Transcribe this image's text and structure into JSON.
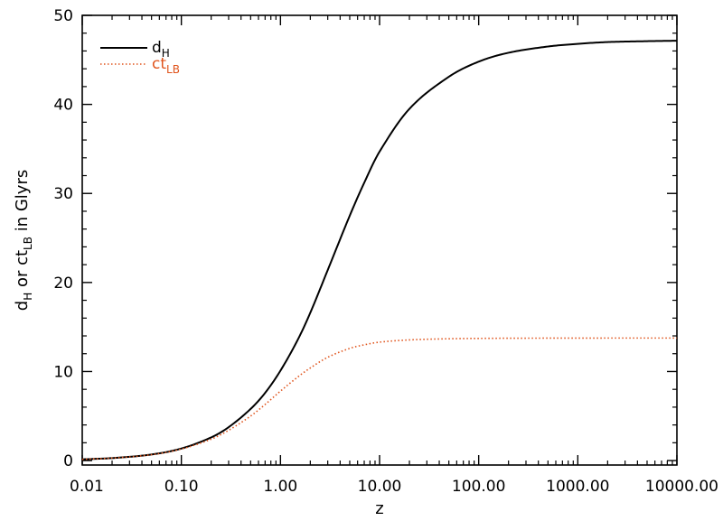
{
  "chart_data": {
    "type": "line",
    "xlabel": "z",
    "ylabel": {
      "parts": [
        "d",
        "H",
        " or ct",
        "LB",
        " in Glyrs"
      ]
    },
    "xscale": "log",
    "xlim": [
      0.01,
      10000
    ],
    "ylim": [
      -0.5,
      50
    ],
    "x_ticks": [
      {
        "value": 0.01,
        "label": "0.01"
      },
      {
        "value": 0.1,
        "label": "0.10"
      },
      {
        "value": 1,
        "label": "1.00"
      },
      {
        "value": 10,
        "label": "10.00"
      },
      {
        "value": 100,
        "label": "100.00"
      },
      {
        "value": 1000,
        "label": "1000.00"
      },
      {
        "value": 10000,
        "label": "10000.00"
      }
    ],
    "y_ticks": [
      {
        "value": 0,
        "label": "0"
      },
      {
        "value": 10,
        "label": "10"
      },
      {
        "value": 20,
        "label": "20"
      },
      {
        "value": 30,
        "label": "30"
      },
      {
        "value": 40,
        "label": "40"
      },
      {
        "value": 50,
        "label": "50"
      }
    ],
    "grid": false,
    "legend_position": "top-left",
    "series": [
      {
        "name": "d",
        "subscript": "H",
        "color": "#000000",
        "style": "solid",
        "x": [
          0.01,
          0.02,
          0.05,
          0.1,
          0.2,
          0.3,
          0.5,
          0.7,
          1.0,
          1.5,
          2.0,
          3.0,
          5.0,
          7.0,
          10.0,
          20.0,
          50.0,
          100.0,
          200.0,
          500.0,
          1000.0,
          2000.0,
          5000.0,
          10000.0
        ],
        "y": [
          0.14,
          0.28,
          0.68,
          1.35,
          2.6,
          3.75,
          5.8,
          7.6,
          10.1,
          13.6,
          16.6,
          21.4,
          27.5,
          31.2,
          34.7,
          39.5,
          43.1,
          44.8,
          45.8,
          46.5,
          46.8,
          47.0,
          47.1,
          47.15
        ]
      },
      {
        "name": "ct",
        "subscript": "LB",
        "color": "#e0541c",
        "style": "dotted",
        "x": [
          0.01,
          0.02,
          0.05,
          0.1,
          0.2,
          0.3,
          0.5,
          0.7,
          1.0,
          1.5,
          2.0,
          3.0,
          5.0,
          7.0,
          10.0,
          20.0,
          50.0,
          100.0,
          200.0,
          500.0,
          1000.0,
          2000.0,
          5000.0,
          10000.0
        ],
        "y": [
          0.14,
          0.28,
          0.66,
          1.3,
          2.4,
          3.4,
          5.0,
          6.3,
          7.8,
          9.4,
          10.4,
          11.6,
          12.6,
          13.0,
          13.3,
          13.55,
          13.68,
          13.72,
          13.74,
          13.75,
          13.75,
          13.76,
          13.76,
          13.76
        ]
      }
    ]
  }
}
